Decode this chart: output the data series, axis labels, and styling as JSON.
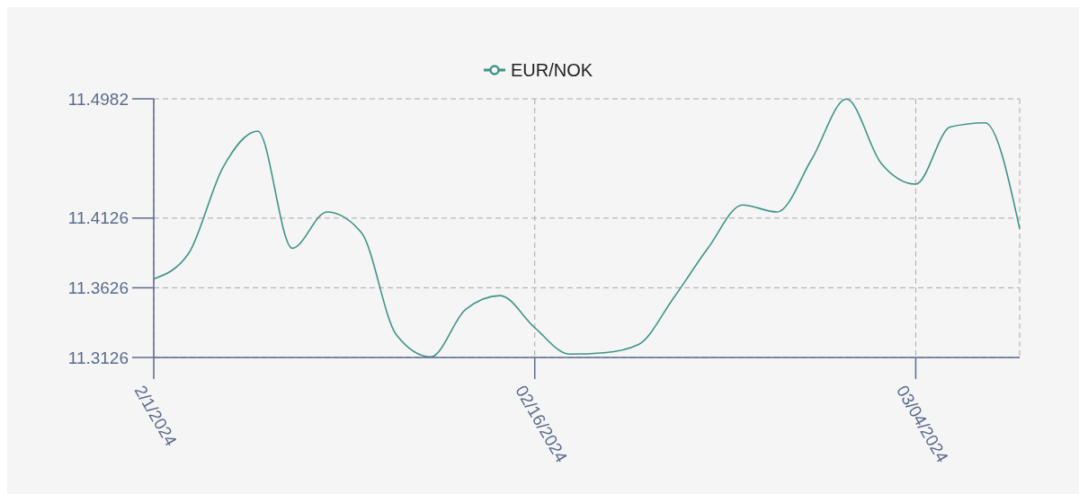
{
  "chart_data": {
    "type": "line",
    "categories": [
      "2/1/2024",
      null,
      null,
      null,
      null,
      null,
      null,
      null,
      null,
      null,
      null,
      "02/16/2024",
      null,
      null,
      null,
      null,
      null,
      null,
      null,
      null,
      null,
      null,
      "03/04/2024",
      null,
      null,
      null
    ],
    "series": [
      {
        "name": "EUR/NOK",
        "color": "#3f9486",
        "values": [
          11.369,
          11.387,
          11.449,
          11.475,
          11.391,
          11.417,
          11.402,
          11.329,
          11.313,
          11.347,
          11.357,
          11.334,
          11.315,
          11.316,
          11.322,
          11.355,
          11.391,
          11.422,
          11.417,
          11.455,
          11.498,
          11.452,
          11.437,
          11.478,
          11.481,
          11.405
        ]
      }
    ],
    "ylim": [
      11.3126,
      11.4982
    ],
    "yticks": [
      11.3126,
      11.3626,
      11.4126,
      11.4982
    ],
    "grid": true,
    "legend": "top",
    "line_style": "solid"
  }
}
